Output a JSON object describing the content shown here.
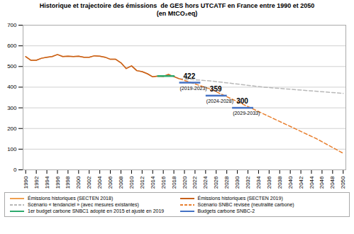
{
  "chart_data": {
    "type": "line",
    "title": "Historique et trajectoire des émissions  de GES hors UTCATF en France entre 1990 et 2050",
    "subtitle": "(en MtCO₂eq)",
    "xlim": [
      1989.5,
      2050.5
    ],
    "xticks": [
      1990,
      1992,
      1994,
      1996,
      1998,
      2000,
      2002,
      2004,
      2006,
      2008,
      2010,
      2012,
      2014,
      2016,
      2018,
      2020,
      2022,
      2024,
      2026,
      2028,
      2030,
      2032,
      2034,
      2036,
      2038,
      2040,
      2042,
      2044,
      2046,
      2048,
      2050
    ],
    "ylim": [
      0,
      700
    ],
    "yticks": [
      0,
      100,
      200,
      300,
      400,
      500,
      600,
      700
    ],
    "grid": true,
    "legend": "bottom",
    "series": [
      {
        "name": "Émissions historiques (SECTEN 2018)",
        "color": "#f0a050",
        "line_style": "solid",
        "x": [
          1990,
          1991,
          1992,
          1993,
          1994,
          1995,
          1996,
          1997,
          1998,
          1999,
          2000,
          2001,
          2002,
          2003,
          2004,
          2005,
          2006,
          2007,
          2008,
          2009,
          2010,
          2011,
          2012,
          2013,
          2014,
          2015,
          2016,
          2017
        ],
        "values": [
          548,
          530,
          530,
          540,
          545,
          548,
          558,
          548,
          550,
          548,
          550,
          545,
          545,
          552,
          550,
          545,
          535,
          535,
          518,
          490,
          503,
          480,
          475,
          465,
          450,
          454,
          452,
          462
        ]
      },
      {
        "name": "Émissions historiques (SECTEN 2019)",
        "color": "#c8601a",
        "line_style": "solid",
        "x": [
          1990,
          1991,
          1992,
          1993,
          1994,
          1995,
          1996,
          1997,
          1998,
          1999,
          2000,
          2001,
          2002,
          2003,
          2004,
          2005,
          2006,
          2007,
          2008,
          2009,
          2010,
          2011,
          2012,
          2013,
          2014,
          2015,
          2016,
          2017,
          2018,
          2019
        ],
        "values": [
          548,
          530,
          530,
          540,
          545,
          548,
          558,
          548,
          550,
          548,
          550,
          545,
          545,
          552,
          550,
          545,
          535,
          535,
          518,
          490,
          503,
          480,
          475,
          465,
          450,
          454,
          452,
          462,
          451,
          441
        ]
      },
      {
        "name": "Scénario « tendanciel » (avec mesures existantes)",
        "color": "#b8b8b8",
        "line_style": "dashed",
        "x": [
          2019,
          2025,
          2030,
          2035,
          2040,
          2045,
          2050
        ],
        "values": [
          441,
          430,
          415,
          400,
          390,
          380,
          370
        ]
      },
      {
        "name": "Scénario SNBC révisée (neutralité carbone)",
        "color": "#e88030",
        "line_style": "dashed",
        "x": [
          2019,
          2025,
          2030,
          2035,
          2040,
          2045,
          2050
        ],
        "values": [
          441,
          390,
          330,
          270,
          210,
          150,
          80
        ]
      },
      {
        "name": "1er budget carbone SNBC1 adopté en 2015 et ajusté en 2019",
        "color": "#2eaa6e",
        "line_style": "solid",
        "x": [
          2015,
          2018
        ],
        "values": [
          454,
          454
        ]
      },
      {
        "name": "Budgets carbone SNBC-2",
        "color": "#4472c4",
        "line_style": "solid",
        "data_labels": true,
        "x": [
          2019,
          2023,
          null,
          2024,
          2028,
          null,
          2029,
          2033
        ],
        "values": [
          422,
          422,
          null,
          359,
          359,
          null,
          300,
          300
        ]
      }
    ],
    "annotations": [
      {
        "text": "(2019-2023)",
        "x": 2019,
        "y": 422
      },
      {
        "text": "(2024-2028)",
        "x": 2024,
        "y": 359
      },
      {
        "text": "(2029-2033)",
        "x": 2029,
        "y": 300
      }
    ]
  }
}
